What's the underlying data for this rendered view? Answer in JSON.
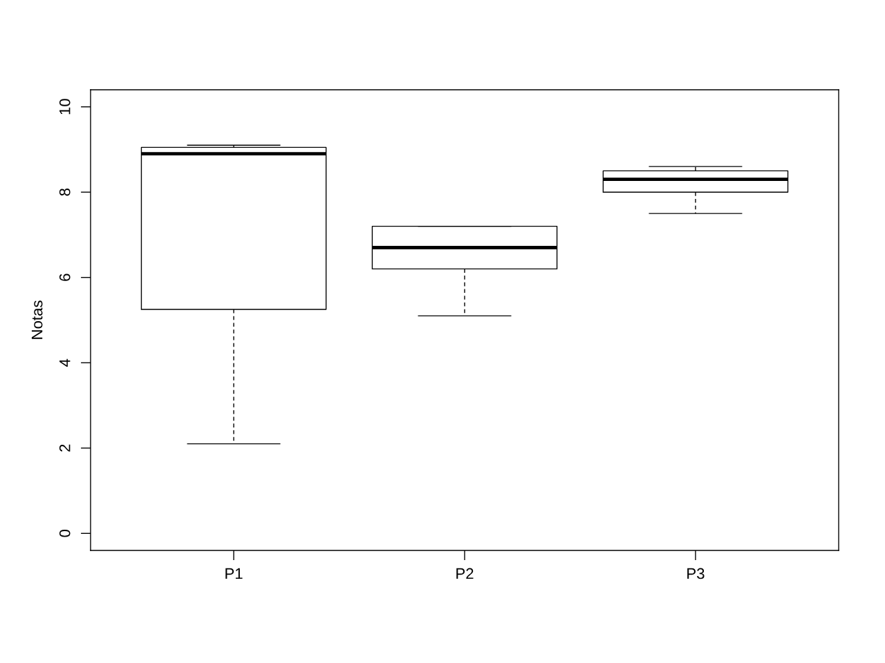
{
  "chart_data": {
    "type": "box",
    "ylabel": "Notas",
    "categories": [
      "P1",
      "P2",
      "P3"
    ],
    "boxes": [
      {
        "low": 2.1,
        "q1": 5.25,
        "median": 8.9,
        "q3": 9.05,
        "high": 9.1
      },
      {
        "low": 5.1,
        "q1": 6.2,
        "median": 6.7,
        "q3": 7.2,
        "high": 7.2
      },
      {
        "low": 7.5,
        "q1": 8.0,
        "median": 8.3,
        "q3": 8.5,
        "high": 8.6
      }
    ],
    "ylim": [
      -0.4,
      10.4
    ],
    "yticks": [
      0,
      2,
      4,
      6,
      8,
      10
    ],
    "grid": false,
    "legend": false
  }
}
